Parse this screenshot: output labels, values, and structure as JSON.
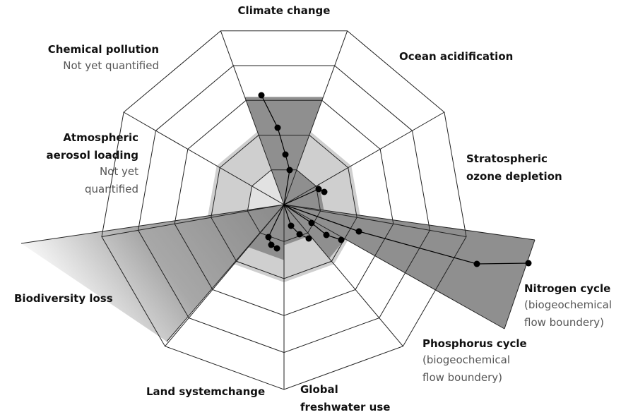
{
  "labels": [
    {
      "name": [
        "Climate change"
      ]
    },
    {
      "name": [
        "Ocean acidification"
      ]
    },
    {
      "name": [
        "Chemical pollution"
      ],
      "note": [
        "Not yet quantified"
      ]
    },
    {
      "name": [
        "Stratospheric",
        "ozone depletion"
      ]
    },
    {
      "name": [
        "Atmospheric",
        "aerosol loading"
      ],
      "note": [
        "Not yet",
        "quantified"
      ]
    },
    {
      "name": [
        "Biodiversity loss"
      ]
    },
    {
      "name": [
        "Nitrogen cycle"
      ],
      "note": [
        "(biogeochemical",
        "flow boundery)"
      ]
    },
    {
      "name": [
        "Phosphorus cycle"
      ],
      "note": [
        "(biogeochemical",
        "flow boundery)"
      ]
    },
    {
      "name": [
        "Land systemchange"
      ]
    },
    {
      "name": [
        "Global",
        "freshwater use"
      ]
    }
  ]
}
